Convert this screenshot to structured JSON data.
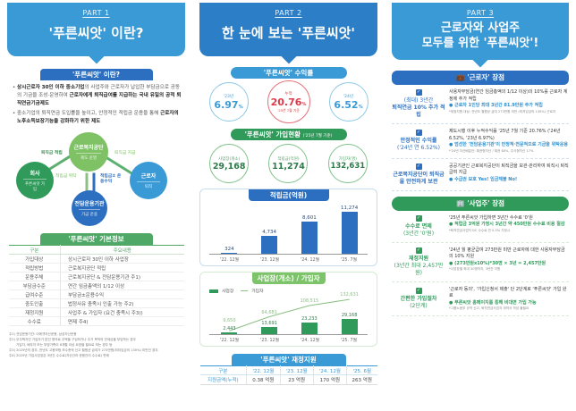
{
  "part1": {
    "part_label": "PART 1",
    "title": "'푸른씨앗' 이란?",
    "intro": {
      "heading": "'푸른씨앗' 이란?",
      "bullets": [
        {
          "bold1": "상시근로자 30인 이하 중소기업",
          "text1": "의 사업주와 근로자가 납입한 부담금으로 공동의 기금을 조성·운영하여 ",
          "bold2": "근로자에게 퇴직급여를 지급하는 국내 유일의 공적 퇴직연금기금제도"
        },
        {
          "text1": "중소기업의 퇴직연금 도입률을 높이고, 안정적인 적립금 운용을 통해 ",
          "bold2": "근로자의 노후소득보장기능을 강화하기 위한 제도"
        }
      ]
    },
    "diagram": {
      "center": {
        "name": "근로복지공단",
        "sub": "제도 운영"
      },
      "company": {
        "name": "회사",
        "sub": "푸른씨앗 가입"
      },
      "worker": {
        "name": "근로자",
        "sub": "퇴직"
      },
      "manager": {
        "name": "전담운용기관",
        "sub": "기금 운용"
      },
      "labels": {
        "deposit": "퇴직금 적립",
        "payout": "퇴직금 지급",
        "entrust": "적립금 위탁",
        "returns": "적립금± 운용수익"
      }
    },
    "basic_info": {
      "heading": "'푸른씨앗' 기본정보",
      "columns": [
        "구분",
        "주요내용"
      ],
      "rows": [
        [
          "가입대상",
          "상시근로자 30인 이하 사업장"
        ],
        [
          "적립방법",
          "근로복지공단 적립"
        ],
        [
          "운용주체",
          "근로복지공단 & 전담운용기관 주1)"
        ],
        [
          "부담금수준",
          "연간 임금총액의 1/12 이상"
        ],
        [
          "급여수준",
          "부담금±운용수익"
        ],
        [
          "중도인출",
          "법정사유 충족시 인출 가능 주2)"
        ],
        [
          "재정지원",
          "사업주 & 가입자 (요건 충족시 주3))"
        ],
        [
          "수수료",
          "면제 주4)"
        ]
      ],
      "notes": [
        "주1) 전담운용기관: 이에셋자산운용, 삼성자산운용",
        "주2) 무주택자인 가입자가 본인 명의로 주택을 구입하거나 주거 목적의 전세금을 부담하는 경우",
        "가입자, 배우자 또는 부양가족이 6개월 이상 요양을 필요로 하는 경우 등",
        "주3) 2025년의 경우, 전년도 고용보험 보수총액 신고 월평균 급여가 273만원(최저임금의 130%) 미만인 경우",
        "주4) 2025년 가입사업장은 3년간 수수료(자산관리·운용관리 수수료) 면제"
      ]
    }
  },
  "part2": {
    "part_label": "PART 2",
    "title": "한 눈에 보는 '푸른씨앗'",
    "returns": {
      "heading": "'푸른씨앗' 수익률",
      "items": [
        {
          "label": "'23년",
          "value": "6.97",
          "unit": "%"
        },
        {
          "label": "누적",
          "value": "20.76",
          "unit": "%",
          "foot": "'25년 7월 기준"
        },
        {
          "label": "'24년",
          "value": "6.52",
          "unit": "%"
        }
      ]
    },
    "membership": {
      "heading": "'푸른씨앗' 가입현황",
      "heading_note": "('25년 7월 기준)",
      "items": [
        {
          "label": "사업장(개소)",
          "value": "29,168"
        },
        {
          "label": "적립금(억원)",
          "value": "11,274"
        },
        {
          "label": "가입자(명)",
          "value": "132,631"
        }
      ]
    },
    "fund_support": {
      "heading": "'푸른씨앗' 재정지원",
      "columns": [
        "구분",
        "'22. 12월",
        "'23. 12월",
        "'24. 12월",
        "'25. 6월"
      ],
      "row": [
        "지원금액(누적)",
        "0.38 억원",
        "23 억원",
        "170 억원",
        "263 억원"
      ]
    }
  },
  "chart_data": [
    {
      "type": "bar",
      "title": "적립금(억원)",
      "categories": [
        "'22. 12월",
        "'23. 12월",
        "'24. 12월",
        "'25. 7월"
      ],
      "values": [
        324,
        4734,
        8601,
        11274
      ],
      "value_labels": [
        "324",
        "4,734",
        "8,601",
        "11,274"
      ],
      "ylim": [
        0,
        12000
      ],
      "color": "#2c6fc0"
    },
    {
      "type": "bar+line",
      "title": "사업장(개소) / 가입자(명)",
      "categories": [
        "'22. 12월",
        "'23. 12월",
        "'24. 12월",
        "'25. 7월"
      ],
      "series": [
        {
          "name": "사업장",
          "type": "bar",
          "values": [
            2443,
            13691,
            23233,
            29168
          ],
          "value_labels": [
            "2,443",
            "13,691",
            "23,233",
            "29,168"
          ],
          "color": "#2f9a5a"
        },
        {
          "name": "가입자",
          "type": "line",
          "values": [
            9650,
            64681,
            108515,
            132631
          ],
          "value_labels": [
            "9,650",
            "64,681",
            "108,515",
            "132,631"
          ],
          "color": "#8cc084"
        }
      ],
      "legend": [
        "사업장",
        "가입자"
      ]
    }
  ],
  "part3": {
    "part_label": "PART 3",
    "title_line1": "근로자와 사업주",
    "title_line2": "모두를 위한 '푸른씨앗'!",
    "worker_section": {
      "heading": "'근로자' 장점",
      "items": [
        {
          "left_sub": "(최대) 3년간",
          "left_main": "퇴직연금 10% 추가 적립",
          "text": "사용자부담금(연간 임금총액의 1/12 이상)의 10%를 근로자 계정에 추가 적립",
          "highlight": "근로자 1인당 최대 3년간 81.9만원 추가 적립",
          "note": "*재정지원 대상: 전년도 월평균 급여 273만원 미만 (최저임금의 130%) 근로자"
        },
        {
          "left_main": "안정적인 수익률",
          "left_sub": "('24년 연 6.52%)",
          "text": "제도시행 이후 누적수익률 '25년 7월 기준 20.76% ('24년 6.52%, '23년 6.97%)",
          "highlight": "엄선한 '전담운용기관'이 안정적·전문적으로 기금을 위탁운용",
          "note": "*'24년 자산배분안: 채권형자산 / 채권 80%, 주식형자산 17%"
        },
        {
          "left_main": "근로복지공단이 퇴직금을 안전하게 보관",
          "text": "공공기관인 근로복지공단이 퇴직금을 보관·관리하여 퇴직시 퇴직급여 지급",
          "highlight": "수급권 보호 Yes! 임금체불 No!"
        }
      ]
    },
    "employer_section": {
      "heading": "'사업주' 장점",
      "items": [
        {
          "left_main": "수수료 면제",
          "left_sub": "(3년간 '0'원)",
          "text": "'25년 푸른씨앗 가입하면 3년간 수수료 '0'원",
          "highlight": "적립금 3억원 가정시 3년간 약 450만원 수수료 비용 절감",
          "note": "*퇴직연금사업자 DC 수수료 연 0.5% 가정시"
        },
        {
          "left_main": "재정지원",
          "left_sub": "(3년간 최대 2,457만원)",
          "text": "'24년 월 평균급여 273만원 미만 근로자에 대한 사용자부담금의 10% 지원",
          "highlight": "(273만원x10%)*30명 × 3년 = 2,457만원",
          "note": "*사업장별 최대 30명까지, 3년간 지원"
        },
        {
          "left_main": "간편한 가입절차",
          "left_sub": "(2단계)",
          "text": "'근로자 동의', '가입신청서 제출' 단 2단계로 '푸른씨앗' 가입 완료",
          "highlight": "푸른씨앗 홈페이지를 통해 비대면 가입 가능",
          "note": "*그룹노동부 규약 신고, 퇴직연금사업자 계약서 작성 불필요"
        }
      ]
    }
  },
  "colors": {
    "blue": "#2c6fc0",
    "light_blue": "#3a9ad6",
    "green": "#2f9a5a",
    "light_green": "#7fc266",
    "red": "#e03a4a"
  }
}
